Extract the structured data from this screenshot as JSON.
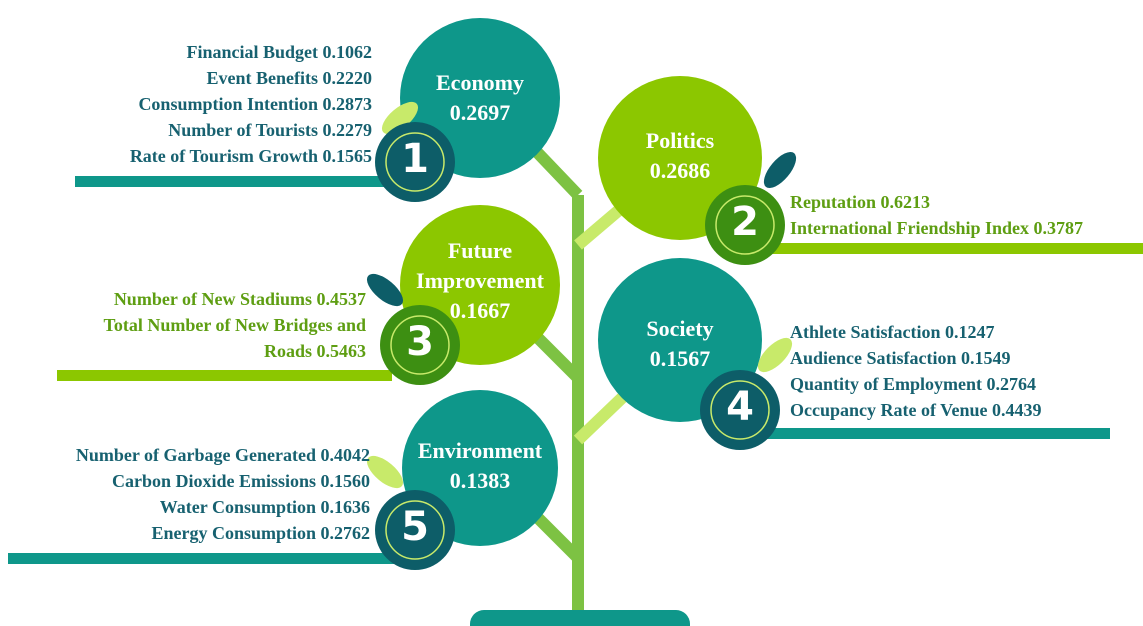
{
  "nodes": [
    {
      "number": "1",
      "title": "Economy",
      "weight": "0.2697",
      "items": [
        "Financial Budget 0.1062",
        "Event Benefits 0.2220",
        "Consumption Intention 0.2873",
        "Number of Tourists 0.2279",
        "Rate of Tourism Growth 0.1565"
      ]
    },
    {
      "number": "2",
      "title": "Politics",
      "weight": "0.2686",
      "items": [
        "Reputation 0.6213",
        "International Friendship Index 0.3787"
      ]
    },
    {
      "number": "3",
      "title": "Future Improvement",
      "weight": "0.1667",
      "items": [
        "Number of New Stadiums 0.4537",
        "Total Number of New Bridges and Roads 0.5463"
      ]
    },
    {
      "number": "4",
      "title": "Society",
      "weight": "0.1567",
      "items": [
        "Athlete Satisfaction 0.1247",
        "Audience Satisfaction 0.1549",
        "Quantity of Employment 0.2764",
        "Occupancy Rate of Venue 0.4439"
      ]
    },
    {
      "number": "5",
      "title": "Environment",
      "weight": "0.1383",
      "items": [
        "Number of Garbage Generated 0.4042",
        "Carbon Dioxide Emissions 0.1560",
        "Water Consumption 0.1636",
        "Energy Consumption 0.2762"
      ]
    }
  ]
}
